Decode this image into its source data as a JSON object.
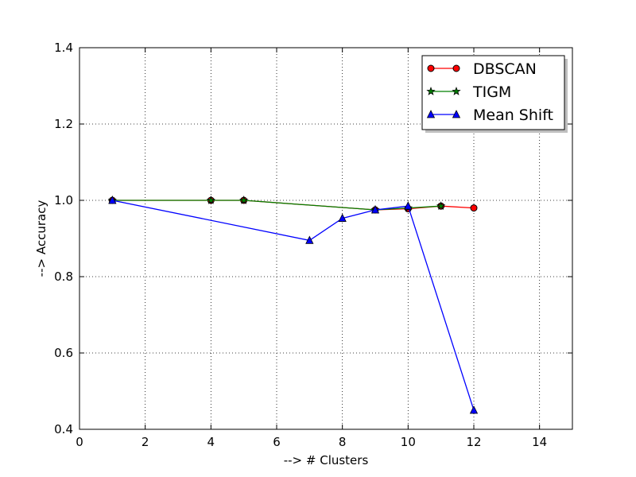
{
  "chart_data": {
    "type": "line",
    "xlabel": "--> # Clusters",
    "ylabel": "--> Accuracy",
    "xlim": [
      0,
      15
    ],
    "ylim": [
      0.4,
      1.4
    ],
    "xticks": [
      0,
      2,
      4,
      6,
      8,
      10,
      12,
      14
    ],
    "yticks": [
      0.4,
      0.6,
      0.8,
      1.0,
      1.2,
      1.4
    ],
    "xtick_labels": [
      "0",
      "2",
      "4",
      "6",
      "8",
      "10",
      "12",
      "14"
    ],
    "ytick_labels": [
      "0.4",
      "0.6",
      "0.8",
      "1.0",
      "1.2",
      "1.4"
    ],
    "grid": true,
    "legend_position": "top-right",
    "series": [
      {
        "name": "DBSCAN",
        "color": "#ff0000",
        "marker": "circle",
        "x": [
          1,
          4,
          5,
          9,
          10,
          11,
          12
        ],
        "y": [
          1.0,
          1.0,
          1.0,
          0.975,
          0.978,
          0.985,
          0.98
        ]
      },
      {
        "name": "TIGM",
        "color": "#008000",
        "marker": "star",
        "x": [
          1,
          4,
          5,
          9,
          10,
          11
        ],
        "y": [
          1.0,
          1.0,
          1.0,
          0.975,
          0.98,
          0.985
        ]
      },
      {
        "name": "Mean Shift",
        "color": "#0000ff",
        "marker": "triangle",
        "x": [
          1,
          7,
          8,
          9,
          10,
          12
        ],
        "y": [
          1.0,
          0.895,
          0.953,
          0.975,
          0.985,
          0.45
        ]
      }
    ]
  }
}
